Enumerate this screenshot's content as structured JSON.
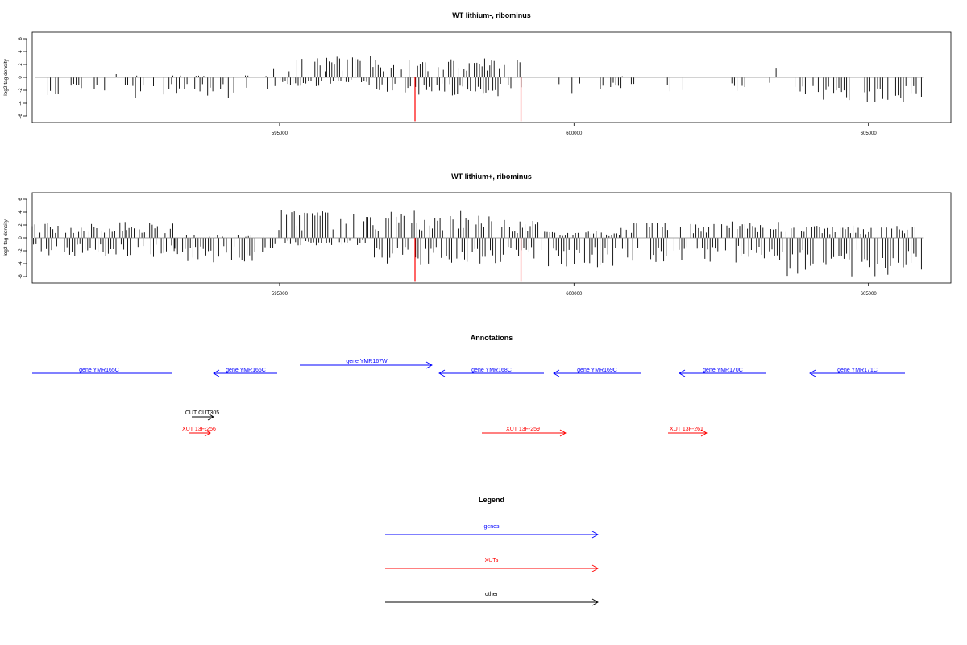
{
  "chart_data": [
    {
      "type": "bar",
      "title": "WT lithium-, ribominus",
      "ylabel": "log2 tag density",
      "xlim": [
        590800,
        606400
      ],
      "ylim": [
        -7,
        7
      ],
      "yticks": [
        -6,
        -4,
        -2,
        0,
        2,
        4,
        6
      ],
      "xticks": [
        595000,
        600000,
        605000
      ],
      "grid": false,
      "series_color": "#000000",
      "highlight_color": "#ff0000",
      "highlights": [
        {
          "x": 597300,
          "y": -6.8
        },
        {
          "x": 599100,
          "y": -6.8
        }
      ],
      "density": [
        [
          590800,
          591000,
          0.08,
          1.2,
          1.2
        ],
        [
          591000,
          592400,
          0.5,
          0.5,
          3.0
        ],
        [
          592400,
          594200,
          0.7,
          0.3,
          3.2
        ],
        [
          594200,
          594900,
          0.4,
          0.3,
          2.4
        ],
        [
          594900,
          595800,
          0.9,
          3.6,
          1.4
        ],
        [
          595800,
          596500,
          0.9,
          3.5,
          1.0
        ],
        [
          596500,
          597300,
          0.9,
          3.4,
          2.5
        ],
        [
          597300,
          598600,
          1.0,
          3.4,
          3.0
        ],
        [
          598600,
          599200,
          0.8,
          3.0,
          3.2
        ],
        [
          599200,
          600600,
          0.4,
          0.2,
          2.6
        ],
        [
          600600,
          603300,
          0.3,
          0.2,
          2.5
        ],
        [
          603300,
          603600,
          0.2,
          2.6,
          2.0
        ],
        [
          603600,
          605900,
          1.0,
          0.1,
          4.2
        ]
      ]
    },
    {
      "type": "bar",
      "title": "WT lithium+, ribominus",
      "ylabel": "log2 tag density",
      "xlim": [
        590800,
        606400
      ],
      "ylim": [
        -7,
        7
      ],
      "yticks": [
        -6,
        -4,
        -2,
        0,
        2,
        4,
        6
      ],
      "xticks": [
        595000,
        600000,
        605000
      ],
      "grid": false,
      "series_color": "#000000",
      "highlight_color": "#ff0000",
      "highlights": [
        {
          "x": 597300,
          "y": -6.8
        },
        {
          "x": 599100,
          "y": -6.8
        }
      ],
      "density": [
        [
          590800,
          592400,
          1.0,
          2.8,
          3.2
        ],
        [
          592400,
          593200,
          0.9,
          2.5,
          3.0
        ],
        [
          593200,
          594900,
          1.0,
          0.5,
          3.8
        ],
        [
          594900,
          596500,
          1.0,
          4.4,
          1.2
        ],
        [
          596500,
          598600,
          1.0,
          4.2,
          4.4
        ],
        [
          598600,
          599500,
          1.0,
          2.8,
          4.0
        ],
        [
          599500,
          600800,
          1.0,
          1.0,
          4.6
        ],
        [
          600800,
          603600,
          0.9,
          2.6,
          4.0
        ],
        [
          603600,
          605900,
          1.0,
          2.0,
          6.2
        ]
      ]
    }
  ],
  "annotations": {
    "title": "Annotations",
    "genes": [
      {
        "label": "gene YMR165C"
      },
      {
        "label": "gene YMR166C"
      },
      {
        "label": "gene YMR167W"
      },
      {
        "label": "gene YMR168C"
      },
      {
        "label": "gene YMR169C"
      },
      {
        "label": "gene YMR170C"
      },
      {
        "label": "gene YMR171C"
      }
    ],
    "other": [
      {
        "label": "CUT CUT305"
      }
    ],
    "xuts": [
      {
        "label": "XUT 13F-256"
      },
      {
        "label": "XUT 13F-259"
      },
      {
        "label": "XUT 13F-261"
      }
    ],
    "colors": {
      "genes": "#0000ff",
      "xuts": "#ff0000",
      "other": "#000000"
    }
  },
  "legend": {
    "title": "Legend",
    "items": [
      {
        "label": "genes",
        "color": "#0000ff"
      },
      {
        "label": "XUTs",
        "color": "#ff0000"
      },
      {
        "label": "other",
        "color": "#000000"
      }
    ]
  }
}
